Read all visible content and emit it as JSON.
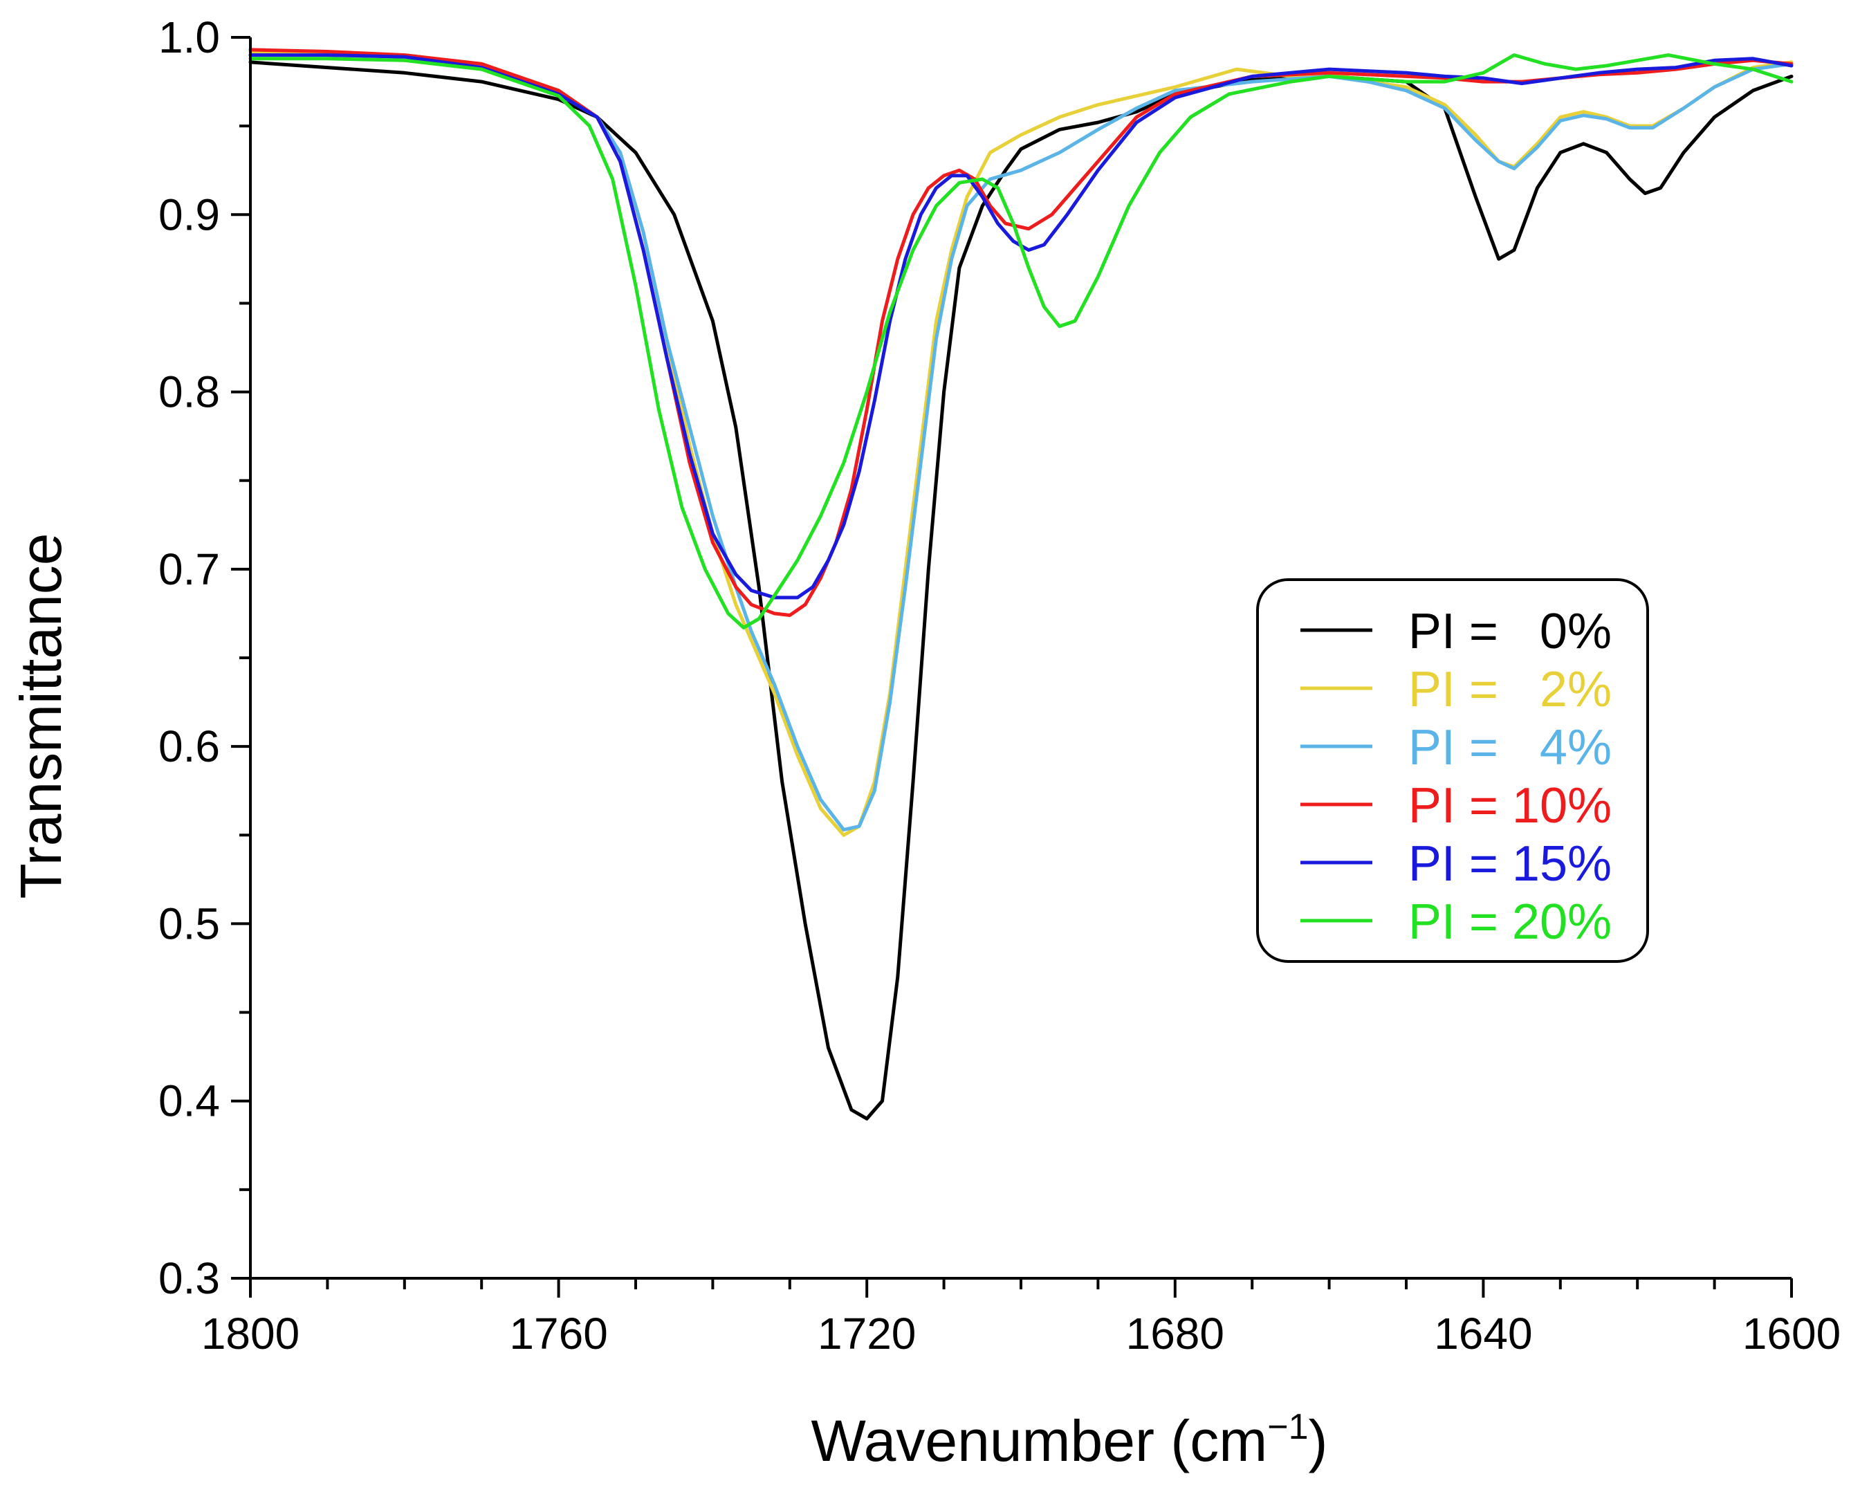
{
  "chart_data": {
    "type": "line",
    "title": "",
    "xlabel": "Wavenumber (cm",
    "xlabel_superscript": "−1",
    "xlabel_close": ")",
    "ylabel": "Transmittance",
    "xlim": [
      1800,
      1600
    ],
    "ylim": [
      0.3,
      1.0
    ],
    "x_major_ticks": [
      1800,
      1760,
      1720,
      1680,
      1640,
      1600
    ],
    "x_tick_labels": [
      "1800",
      "1760",
      "1720",
      "1680",
      "1640",
      "1600"
    ],
    "y_major_ticks": [
      0.3,
      0.4,
      0.5,
      0.6,
      0.7,
      0.8,
      0.9,
      1.0
    ],
    "y_tick_labels": [
      "0.3",
      "0.4",
      "0.5",
      "0.6",
      "0.7",
      "0.8",
      "0.9",
      "1.0"
    ],
    "legend_position": "right",
    "series": [
      {
        "name": "PI =   0%",
        "color": "#000000",
        "points": [
          [
            1800,
            0.986
          ],
          [
            1790,
            0.983
          ],
          [
            1780,
            0.98
          ],
          [
            1770,
            0.975
          ],
          [
            1760,
            0.965
          ],
          [
            1755,
            0.955
          ],
          [
            1750,
            0.935
          ],
          [
            1745,
            0.9
          ],
          [
            1740,
            0.84
          ],
          [
            1737,
            0.78
          ],
          [
            1734,
            0.69
          ],
          [
            1731,
            0.58
          ],
          [
            1728,
            0.5
          ],
          [
            1725,
            0.43
          ],
          [
            1722,
            0.395
          ],
          [
            1720,
            0.39
          ],
          [
            1718,
            0.4
          ],
          [
            1716,
            0.47
          ],
          [
            1714,
            0.58
          ],
          [
            1712,
            0.7
          ],
          [
            1710,
            0.8
          ],
          [
            1708,
            0.87
          ],
          [
            1705,
            0.905
          ],
          [
            1702,
            0.925
          ],
          [
            1700,
            0.937
          ],
          [
            1695,
            0.948
          ],
          [
            1690,
            0.952
          ],
          [
            1685,
            0.958
          ],
          [
            1680,
            0.968
          ],
          [
            1670,
            0.976
          ],
          [
            1660,
            0.978
          ],
          [
            1650,
            0.975
          ],
          [
            1645,
            0.96
          ],
          [
            1641,
            0.91
          ],
          [
            1638,
            0.875
          ],
          [
            1636,
            0.88
          ],
          [
            1633,
            0.915
          ],
          [
            1630,
            0.935
          ],
          [
            1627,
            0.94
          ],
          [
            1624,
            0.935
          ],
          [
            1621,
            0.92
          ],
          [
            1619,
            0.912
          ],
          [
            1617,
            0.915
          ],
          [
            1614,
            0.935
          ],
          [
            1610,
            0.955
          ],
          [
            1605,
            0.97
          ],
          [
            1600,
            0.978
          ]
        ]
      },
      {
        "name": "PI =   2%",
        "color": "#e8d038",
        "points": [
          [
            1800,
            0.992
          ],
          [
            1790,
            0.991
          ],
          [
            1780,
            0.99
          ],
          [
            1770,
            0.985
          ],
          [
            1760,
            0.97
          ],
          [
            1755,
            0.955
          ],
          [
            1752,
            0.935
          ],
          [
            1749,
            0.89
          ],
          [
            1746,
            0.83
          ],
          [
            1743,
            0.77
          ],
          [
            1740,
            0.72
          ],
          [
            1737,
            0.68
          ],
          [
            1735,
            0.66
          ],
          [
            1732,
            0.63
          ],
          [
            1729,
            0.595
          ],
          [
            1726,
            0.565
          ],
          [
            1723,
            0.55
          ],
          [
            1721,
            0.555
          ],
          [
            1719,
            0.58
          ],
          [
            1717,
            0.63
          ],
          [
            1715,
            0.7
          ],
          [
            1713,
            0.77
          ],
          [
            1711,
            0.84
          ],
          [
            1709,
            0.88
          ],
          [
            1707,
            0.91
          ],
          [
            1704,
            0.935
          ],
          [
            1700,
            0.945
          ],
          [
            1695,
            0.955
          ],
          [
            1690,
            0.962
          ],
          [
            1680,
            0.972
          ],
          [
            1672,
            0.982
          ],
          [
            1665,
            0.978
          ],
          [
            1660,
            0.98
          ],
          [
            1655,
            0.975
          ],
          [
            1650,
            0.972
          ],
          [
            1645,
            0.962
          ],
          [
            1641,
            0.945
          ],
          [
            1638,
            0.93
          ],
          [
            1636,
            0.927
          ],
          [
            1633,
            0.94
          ],
          [
            1630,
            0.955
          ],
          [
            1627,
            0.958
          ],
          [
            1624,
            0.955
          ],
          [
            1621,
            0.95
          ],
          [
            1618,
            0.95
          ],
          [
            1614,
            0.96
          ],
          [
            1610,
            0.972
          ],
          [
            1605,
            0.983
          ],
          [
            1600,
            0.986
          ]
        ]
      },
      {
        "name": "PI =   4%",
        "color": "#5ab4e8",
        "points": [
          [
            1800,
            0.99
          ],
          [
            1790,
            0.99
          ],
          [
            1780,
            0.989
          ],
          [
            1770,
            0.983
          ],
          [
            1760,
            0.968
          ],
          [
            1755,
            0.955
          ],
          [
            1752,
            0.935
          ],
          [
            1749,
            0.89
          ],
          [
            1746,
            0.83
          ],
          [
            1743,
            0.78
          ],
          [
            1740,
            0.73
          ],
          [
            1737,
            0.69
          ],
          [
            1735,
            0.665
          ],
          [
            1732,
            0.635
          ],
          [
            1729,
            0.6
          ],
          [
            1726,
            0.57
          ],
          [
            1723,
            0.553
          ],
          [
            1721,
            0.555
          ],
          [
            1719,
            0.575
          ],
          [
            1717,
            0.625
          ],
          [
            1715,
            0.69
          ],
          [
            1713,
            0.76
          ],
          [
            1711,
            0.83
          ],
          [
            1709,
            0.875
          ],
          [
            1707,
            0.905
          ],
          [
            1704,
            0.92
          ],
          [
            1700,
            0.925
          ],
          [
            1695,
            0.935
          ],
          [
            1690,
            0.948
          ],
          [
            1685,
            0.96
          ],
          [
            1680,
            0.97
          ],
          [
            1670,
            0.975
          ],
          [
            1660,
            0.978
          ],
          [
            1655,
            0.975
          ],
          [
            1650,
            0.97
          ],
          [
            1645,
            0.96
          ],
          [
            1641,
            0.942
          ],
          [
            1638,
            0.93
          ],
          [
            1636,
            0.926
          ],
          [
            1633,
            0.938
          ],
          [
            1630,
            0.953
          ],
          [
            1627,
            0.956
          ],
          [
            1624,
            0.954
          ],
          [
            1621,
            0.949
          ],
          [
            1618,
            0.949
          ],
          [
            1614,
            0.96
          ],
          [
            1610,
            0.972
          ],
          [
            1605,
            0.982
          ],
          [
            1600,
            0.985
          ]
        ]
      },
      {
        "name": "PI = 10%",
        "color": "#ee1c1c",
        "points": [
          [
            1800,
            0.993
          ],
          [
            1790,
            0.992
          ],
          [
            1780,
            0.99
          ],
          [
            1770,
            0.985
          ],
          [
            1760,
            0.97
          ],
          [
            1755,
            0.955
          ],
          [
            1752,
            0.93
          ],
          [
            1749,
            0.88
          ],
          [
            1746,
            0.82
          ],
          [
            1743,
            0.76
          ],
          [
            1740,
            0.715
          ],
          [
            1737,
            0.69
          ],
          [
            1735,
            0.68
          ],
          [
            1732,
            0.675
          ],
          [
            1730,
            0.674
          ],
          [
            1728,
            0.68
          ],
          [
            1726,
            0.695
          ],
          [
            1724,
            0.715
          ],
          [
            1722,
            0.745
          ],
          [
            1720,
            0.79
          ],
          [
            1718,
            0.84
          ],
          [
            1716,
            0.875
          ],
          [
            1714,
            0.9
          ],
          [
            1712,
            0.915
          ],
          [
            1710,
            0.922
          ],
          [
            1708,
            0.925
          ],
          [
            1706,
            0.92
          ],
          [
            1704,
            0.905
          ],
          [
            1702,
            0.895
          ],
          [
            1699,
            0.892
          ],
          [
            1696,
            0.9
          ],
          [
            1693,
            0.915
          ],
          [
            1690,
            0.93
          ],
          [
            1685,
            0.955
          ],
          [
            1680,
            0.968
          ],
          [
            1670,
            0.978
          ],
          [
            1660,
            0.98
          ],
          [
            1650,
            0.978
          ],
          [
            1645,
            0.977
          ],
          [
            1640,
            0.975
          ],
          [
            1635,
            0.975
          ],
          [
            1630,
            0.977
          ],
          [
            1625,
            0.979
          ],
          [
            1620,
            0.98
          ],
          [
            1615,
            0.982
          ],
          [
            1610,
            0.985
          ],
          [
            1605,
            0.987
          ],
          [
            1600,
            0.985
          ]
        ]
      },
      {
        "name": "PI = 15%",
        "color": "#1a1adc",
        "points": [
          [
            1800,
            0.99
          ],
          [
            1790,
            0.99
          ],
          [
            1780,
            0.989
          ],
          [
            1770,
            0.983
          ],
          [
            1760,
            0.968
          ],
          [
            1755,
            0.955
          ],
          [
            1752,
            0.93
          ],
          [
            1749,
            0.88
          ],
          [
            1746,
            0.82
          ],
          [
            1743,
            0.765
          ],
          [
            1740,
            0.72
          ],
          [
            1737,
            0.697
          ],
          [
            1735,
            0.688
          ],
          [
            1732,
            0.684
          ],
          [
            1729,
            0.684
          ],
          [
            1727,
            0.69
          ],
          [
            1725,
            0.705
          ],
          [
            1723,
            0.725
          ],
          [
            1721,
            0.755
          ],
          [
            1719,
            0.795
          ],
          [
            1717,
            0.84
          ],
          [
            1715,
            0.875
          ],
          [
            1713,
            0.9
          ],
          [
            1711,
            0.915
          ],
          [
            1709,
            0.922
          ],
          [
            1707,
            0.922
          ],
          [
            1705,
            0.91
          ],
          [
            1703,
            0.895
          ],
          [
            1701,
            0.885
          ],
          [
            1699,
            0.88
          ],
          [
            1697,
            0.883
          ],
          [
            1694,
            0.9
          ],
          [
            1690,
            0.925
          ],
          [
            1685,
            0.952
          ],
          [
            1680,
            0.966
          ],
          [
            1670,
            0.978
          ],
          [
            1660,
            0.982
          ],
          [
            1650,
            0.98
          ],
          [
            1645,
            0.978
          ],
          [
            1640,
            0.977
          ],
          [
            1635,
            0.974
          ],
          [
            1630,
            0.977
          ],
          [
            1625,
            0.98
          ],
          [
            1620,
            0.982
          ],
          [
            1615,
            0.983
          ],
          [
            1610,
            0.987
          ],
          [
            1605,
            0.988
          ],
          [
            1600,
            0.984
          ]
        ]
      },
      {
        "name": "PI = 20%",
        "color": "#22e022",
        "points": [
          [
            1800,
            0.988
          ],
          [
            1790,
            0.988
          ],
          [
            1780,
            0.987
          ],
          [
            1770,
            0.982
          ],
          [
            1760,
            0.967
          ],
          [
            1756,
            0.95
          ],
          [
            1753,
            0.92
          ],
          [
            1750,
            0.86
          ],
          [
            1747,
            0.79
          ],
          [
            1744,
            0.735
          ],
          [
            1741,
            0.7
          ],
          [
            1738,
            0.675
          ],
          [
            1736,
            0.667
          ],
          [
            1734,
            0.672
          ],
          [
            1732,
            0.685
          ],
          [
            1729,
            0.705
          ],
          [
            1726,
            0.73
          ],
          [
            1723,
            0.76
          ],
          [
            1720,
            0.8
          ],
          [
            1717,
            0.845
          ],
          [
            1714,
            0.88
          ],
          [
            1711,
            0.905
          ],
          [
            1708,
            0.918
          ],
          [
            1705,
            0.92
          ],
          [
            1703,
            0.915
          ],
          [
            1701,
            0.895
          ],
          [
            1699,
            0.87
          ],
          [
            1697,
            0.848
          ],
          [
            1695,
            0.837
          ],
          [
            1693,
            0.84
          ],
          [
            1690,
            0.865
          ],
          [
            1686,
            0.905
          ],
          [
            1682,
            0.935
          ],
          [
            1678,
            0.955
          ],
          [
            1673,
            0.968
          ],
          [
            1665,
            0.975
          ],
          [
            1660,
            0.978
          ],
          [
            1650,
            0.975
          ],
          [
            1645,
            0.975
          ],
          [
            1640,
            0.98
          ],
          [
            1636,
            0.99
          ],
          [
            1632,
            0.985
          ],
          [
            1628,
            0.982
          ],
          [
            1624,
            0.984
          ],
          [
            1620,
            0.987
          ],
          [
            1616,
            0.99
          ],
          [
            1610,
            0.985
          ],
          [
            1605,
            0.982
          ],
          [
            1600,
            0.975
          ]
        ]
      }
    ]
  }
}
